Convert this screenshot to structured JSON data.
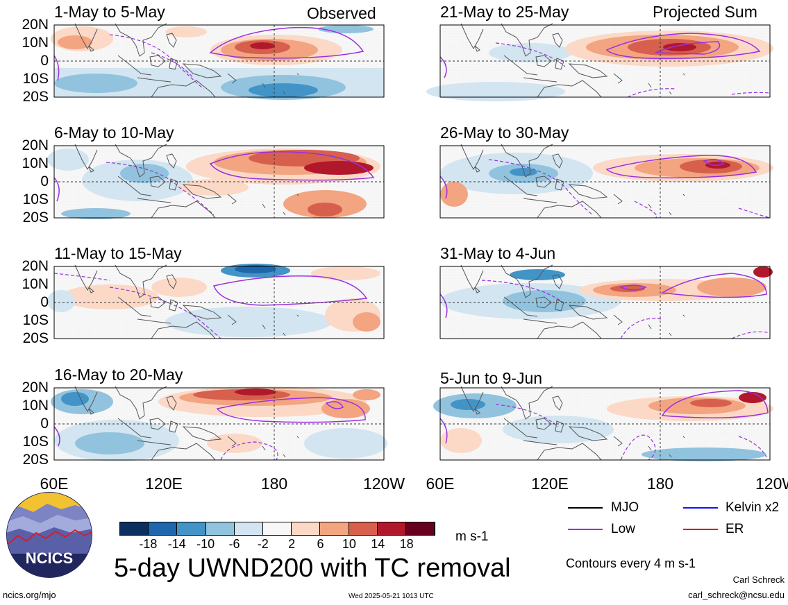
{
  "panels_left": [
    {
      "title": "1-May to 5-May",
      "tag": "Observed"
    },
    {
      "title": "6-May to 10-May",
      "tag": ""
    },
    {
      "title": "11-May to 15-May",
      "tag": ""
    },
    {
      "title": "16-May to 20-May",
      "tag": ""
    }
  ],
  "panels_right": [
    {
      "title": "21-May to 25-May",
      "tag": "Projected Sum"
    },
    {
      "title": "26-May to 30-May",
      "tag": ""
    },
    {
      "title": "31-May to 4-Jun",
      "tag": ""
    },
    {
      "title": "5-Jun to 9-Jun",
      "tag": ""
    }
  ],
  "lat_labels": [
    "20N",
    "10N",
    "0",
    "10S",
    "20S"
  ],
  "lon_labels": [
    "60E",
    "120E",
    "180",
    "120W"
  ],
  "colorbar": {
    "ticks": [
      "-18",
      "-14",
      "-10",
      "-6",
      "-2",
      "2",
      "6",
      "10",
      "14",
      "18"
    ],
    "colors": [
      "#0b2f5e",
      "#1f66ad",
      "#4294c7",
      "#91c3de",
      "#d2e5f0",
      "#f7f7f7",
      "#fbd9c6",
      "#f3a481",
      "#d6604d",
      "#b2182b",
      "#67001f"
    ],
    "units": "m s-1"
  },
  "legend": {
    "items": [
      {
        "label": "MJO",
        "color": "#000000"
      },
      {
        "label": "Kelvin x2",
        "color": "#1010ff"
      },
      {
        "label": "Low",
        "color": "#9a30e0"
      },
      {
        "label": "ER",
        "color": "#e01010"
      }
    ],
    "contour_note": "Contours every 4 m s-1"
  },
  "logo_text": "NCICS",
  "main_title": "5-day UWND200 with TC removal",
  "footer": {
    "url": "ncics.org/mjo",
    "timestamp": "Wed 2025-05-21 1013 UTC",
    "author": "Carl Schreck",
    "email": "carl_schreck@ncsu.edu"
  }
}
